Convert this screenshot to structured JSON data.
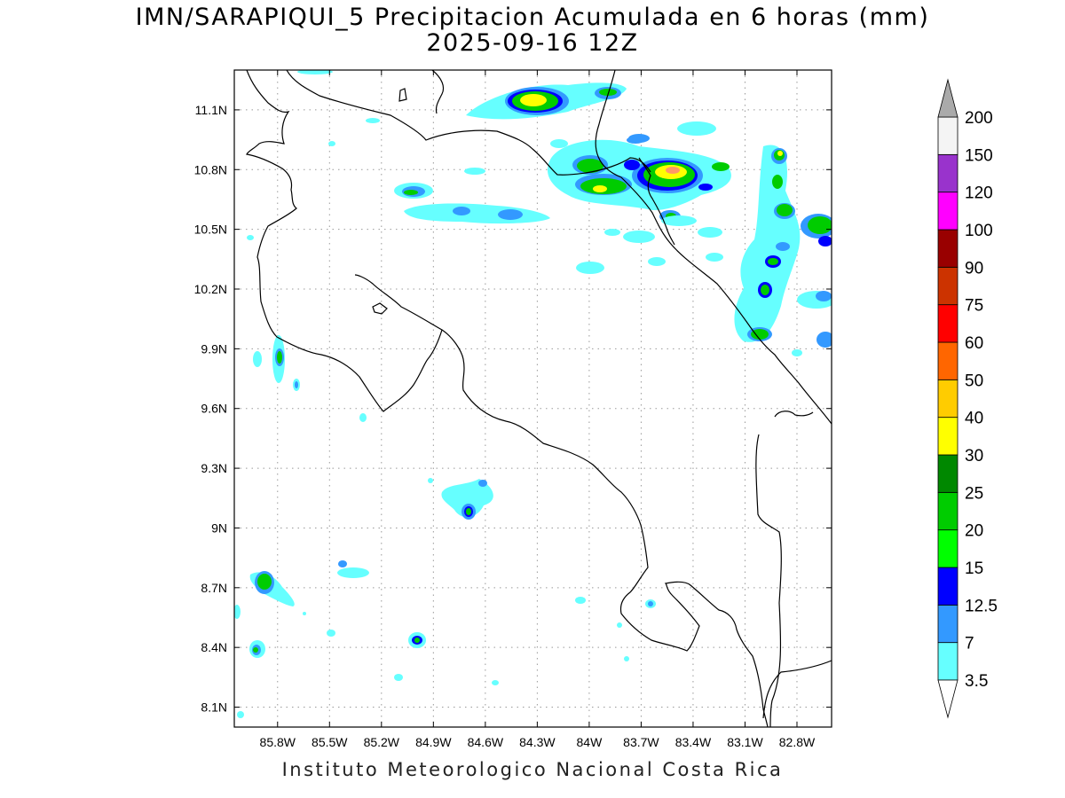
{
  "title": {
    "line1": "IMN/SARAPIQUI_5 Precipitacion Acumulada en 6 horas (mm)",
    "line2": "2025-09-16 12Z"
  },
  "footer": "Instituto Meteorologico Nacional Costa Rica",
  "map": {
    "lon_range": [
      -86.05,
      -82.6
    ],
    "lat_range": [
      8.0,
      11.3
    ],
    "x_ticks": [
      {
        "label": "85.8W",
        "value": -85.8
      },
      {
        "label": "85.5W",
        "value": -85.5
      },
      {
        "label": "85.2W",
        "value": -85.2
      },
      {
        "label": "84.9W",
        "value": -84.9
      },
      {
        "label": "84.6W",
        "value": -84.6
      },
      {
        "label": "84.3W",
        "value": -84.3
      },
      {
        "label": "84W",
        "value": -84.0
      },
      {
        "label": "83.7W",
        "value": -83.7
      },
      {
        "label": "83.4W",
        "value": -83.4
      },
      {
        "label": "83.1W",
        "value": -83.1
      },
      {
        "label": "82.8W",
        "value": -82.8
      }
    ],
    "y_ticks": [
      {
        "label": "11.1N",
        "value": 11.1
      },
      {
        "label": "10.8N",
        "value": 10.8
      },
      {
        "label": "10.5N",
        "value": 10.5
      },
      {
        "label": "10.2N",
        "value": 10.2
      },
      {
        "label": "9.9N",
        "value": 9.9
      },
      {
        "label": "9.6N",
        "value": 9.6
      },
      {
        "label": "9.3N",
        "value": 9.3
      },
      {
        "label": "9N",
        "value": 9.0
      },
      {
        "label": "8.7N",
        "value": 8.7
      },
      {
        "label": "8.4N",
        "value": 8.4
      },
      {
        "label": "8.1N",
        "value": 8.1
      }
    ],
    "grid": true
  },
  "legend": {
    "orientation": "vertical",
    "levels": [
      "3.5",
      "7",
      "12.5",
      "15",
      "20",
      "25",
      "30",
      "40",
      "50",
      "60",
      "75",
      "90",
      "100",
      "120",
      "150",
      "200"
    ],
    "colors": [
      "#66ffff",
      "#3399ff",
      "#0000ff",
      "#00ff00",
      "#00cc00",
      "#008800",
      "#ffff00",
      "#ffcc00",
      "#ff6600",
      "#ff0000",
      "#cc3300",
      "#990000",
      "#ff00ff",
      "#9933cc",
      "#f4f4f4"
    ],
    "over_color": "#aaaaaa",
    "under_color": "#ffffff"
  }
}
